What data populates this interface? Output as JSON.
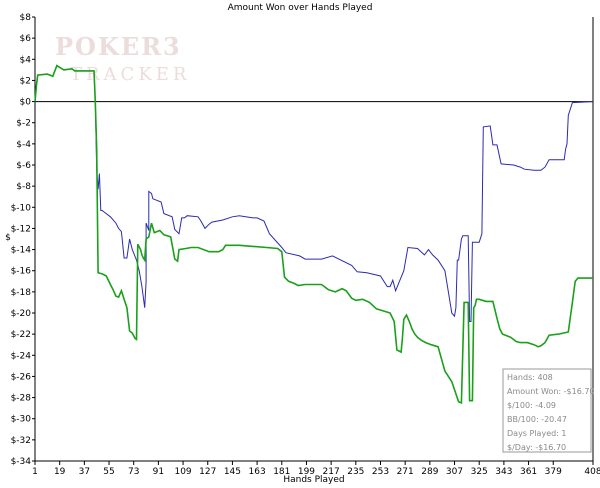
{
  "chart_data": {
    "type": "line",
    "title": "Amount Won over Hands Played",
    "xlabel": "Hands Played",
    "ylabel": "$",
    "xlim": [
      1,
      408
    ],
    "ylim": [
      -34,
      8
    ],
    "x_ticks": [
      1,
      19,
      37,
      55,
      73,
      91,
      109,
      127,
      145,
      163,
      181,
      199,
      217,
      235,
      253,
      271,
      289,
      307,
      325,
      343,
      361,
      379,
      408
    ],
    "y_ticks": [
      8,
      6,
      4,
      2,
      0,
      -2,
      -4,
      -6,
      -8,
      -10,
      -12,
      -14,
      -16,
      -18,
      -20,
      -22,
      -24,
      -26,
      -28,
      -30,
      -32,
      -34
    ],
    "y_tick_labels": [
      "$8",
      "$6",
      "$4",
      "$2",
      "$0",
      "$-2",
      "$-4",
      "$-6",
      "$-8",
      "$-10",
      "$-12",
      "$-14",
      "$-16",
      "$-18",
      "$-20",
      "$-22",
      "$-24",
      "$-26",
      "$-28",
      "$-30",
      "$-32",
      "$-34"
    ],
    "grid": false,
    "zero_line": true,
    "series": [
      {
        "color": "#2b2bb0",
        "points": [
          [
            1,
            0
          ],
          [
            2,
            1.5
          ],
          [
            3,
            2.5
          ],
          [
            10,
            2.6
          ],
          [
            14,
            2.4
          ],
          [
            17,
            3.4
          ],
          [
            22,
            3.0
          ],
          [
            28,
            3.1
          ],
          [
            30,
            2.9
          ],
          [
            40,
            2.9
          ],
          [
            44,
            2.9
          ],
          [
            45,
            -0.1
          ],
          [
            46,
            -6.5
          ],
          [
            47,
            -8.3
          ],
          [
            48,
            -6.8
          ],
          [
            49,
            -10.3
          ],
          [
            50,
            -10.3
          ],
          [
            52,
            -10.5
          ],
          [
            56,
            -10.9
          ],
          [
            60,
            -11.5
          ],
          [
            62,
            -12.0
          ],
          [
            64,
            -12.3
          ],
          [
            66,
            -14.8
          ],
          [
            68,
            -14.8
          ],
          [
            70,
            -13.0
          ],
          [
            72,
            -14.0
          ],
          [
            75,
            -15.0
          ],
          [
            77,
            -16.0
          ],
          [
            79,
            -17.5
          ],
          [
            81,
            -19.5
          ],
          [
            82,
            -17.0
          ],
          [
            82,
            -11.5
          ],
          [
            84,
            -12.2
          ],
          [
            84,
            -8.5
          ],
          [
            86,
            -8.7
          ],
          [
            87,
            -9.2
          ],
          [
            93,
            -9.5
          ],
          [
            95,
            -10.6
          ],
          [
            101,
            -10.9
          ],
          [
            103,
            -12.1
          ],
          [
            106,
            -12.5
          ],
          [
            108,
            -11.0
          ],
          [
            110,
            -11.0
          ],
          [
            112,
            -10.8
          ],
          [
            120,
            -10.9
          ],
          [
            122,
            -11.3
          ],
          [
            125,
            -12.0
          ],
          [
            128,
            -11.6
          ],
          [
            130,
            -11.4
          ],
          [
            138,
            -11.2
          ],
          [
            145,
            -10.9
          ],
          [
            150,
            -10.8
          ],
          [
            160,
            -11.0
          ],
          [
            163,
            -11.0
          ],
          [
            168,
            -11.3
          ],
          [
            172,
            -12.5
          ],
          [
            181,
            -13.8
          ],
          [
            184,
            -14.3
          ],
          [
            194,
            -14.6
          ],
          [
            198,
            -14.9
          ],
          [
            210,
            -14.9
          ],
          [
            218,
            -14.6
          ],
          [
            232,
            -15.5
          ],
          [
            236,
            -16.1
          ],
          [
            243,
            -16.2
          ],
          [
            253,
            -16.5
          ],
          [
            258,
            -17.5
          ],
          [
            260,
            -17.5
          ],
          [
            262,
            -16.9
          ],
          [
            264,
            -17.9
          ],
          [
            270,
            -16.0
          ],
          [
            273,
            -13.8
          ],
          [
            280,
            -13.9
          ],
          [
            285,
            -14.5
          ],
          [
            288,
            -14.0
          ],
          [
            291,
            -14.5
          ],
          [
            295,
            -15.0
          ],
          [
            300,
            -16.0
          ],
          [
            305,
            -20.0
          ],
          [
            307,
            -20.3
          ],
          [
            308,
            -19.5
          ],
          [
            309,
            -15.0
          ],
          [
            310,
            -15.0
          ],
          [
            312,
            -13.0
          ],
          [
            313,
            -12.7
          ],
          [
            317,
            -12.7
          ],
          [
            318,
            -20.8
          ],
          [
            319,
            -20.8
          ],
          [
            320,
            -13.3
          ],
          [
            325,
            -13.3
          ],
          [
            327,
            -12.5
          ],
          [
            328,
            -2.4
          ],
          [
            333,
            -2.3
          ],
          [
            335,
            -4.1
          ],
          [
            338,
            -4.1
          ],
          [
            341,
            -5.9
          ],
          [
            350,
            -6.0
          ],
          [
            355,
            -6.2
          ],
          [
            358,
            -6.4
          ],
          [
            365,
            -6.5
          ],
          [
            370,
            -6.5
          ],
          [
            373,
            -6.2
          ],
          [
            376,
            -5.5
          ],
          [
            387,
            -5.5
          ],
          [
            388,
            -4.5
          ],
          [
            389,
            -4.0
          ],
          [
            390,
            -1.3
          ],
          [
            393,
            -0.1
          ],
          [
            408,
            0.0
          ]
        ]
      },
      {
        "color": "#1aa01a",
        "points": [
          [
            1,
            0
          ],
          [
            2,
            1.5
          ],
          [
            3,
            2.5
          ],
          [
            10,
            2.6
          ],
          [
            14,
            2.4
          ],
          [
            17,
            3.4
          ],
          [
            22,
            3.0
          ],
          [
            28,
            3.1
          ],
          [
            30,
            2.9
          ],
          [
            40,
            2.9
          ],
          [
            44,
            2.9
          ],
          [
            45,
            0.0
          ],
          [
            46,
            -4.5
          ],
          [
            47,
            -16.2
          ],
          [
            50,
            -16.3
          ],
          [
            53,
            -16.5
          ],
          [
            56,
            -17.3
          ],
          [
            58,
            -17.8
          ],
          [
            60,
            -18.4
          ],
          [
            62,
            -18.5
          ],
          [
            64,
            -17.9
          ],
          [
            66,
            -18.7
          ],
          [
            68,
            -19.5
          ],
          [
            70,
            -21.7
          ],
          [
            72,
            -21.9
          ],
          [
            74,
            -22.4
          ],
          [
            75,
            -22.5
          ],
          [
            76,
            -13.5
          ],
          [
            78,
            -14.0
          ],
          [
            79,
            -14.5
          ],
          [
            80,
            -14.8
          ],
          [
            81,
            -15.0
          ],
          [
            82,
            -13.0
          ],
          [
            84,
            -12.8
          ],
          [
            86,
            -11.5
          ],
          [
            88,
            -12.4
          ],
          [
            92,
            -12.2
          ],
          [
            95,
            -12.6
          ],
          [
            100,
            -12.8
          ],
          [
            103,
            -14.9
          ],
          [
            105,
            -15.1
          ],
          [
            106,
            -14.0
          ],
          [
            111,
            -13.9
          ],
          [
            115,
            -13.8
          ],
          [
            120,
            -13.8
          ],
          [
            128,
            -14.2
          ],
          [
            135,
            -14.2
          ],
          [
            138,
            -14.0
          ],
          [
            140,
            -13.6
          ],
          [
            150,
            -13.6
          ],
          [
            160,
            -13.7
          ],
          [
            170,
            -13.8
          ],
          [
            178,
            -13.9
          ],
          [
            181,
            -14.2
          ],
          [
            183,
            -16.6
          ],
          [
            186,
            -17.0
          ],
          [
            190,
            -17.2
          ],
          [
            193,
            -17.4
          ],
          [
            198,
            -17.3
          ],
          [
            203,
            -17.3
          ],
          [
            210,
            -17.3
          ],
          [
            215,
            -17.8
          ],
          [
            220,
            -18.0
          ],
          [
            225,
            -17.7
          ],
          [
            228,
            -17.9
          ],
          [
            232,
            -18.6
          ],
          [
            235,
            -18.8
          ],
          [
            240,
            -18.7
          ],
          [
            245,
            -19.0
          ],
          [
            250,
            -19.6
          ],
          [
            255,
            -19.8
          ],
          [
            260,
            -20.0
          ],
          [
            263,
            -20.8
          ],
          [
            265,
            -23.5
          ],
          [
            268,
            -23.7
          ],
          [
            269,
            -22.4
          ],
          [
            270,
            -20.6
          ],
          [
            272,
            -20.2
          ],
          [
            274,
            -20.8
          ],
          [
            276,
            -21.5
          ],
          [
            278,
            -22.0
          ],
          [
            280,
            -22.3
          ],
          [
            283,
            -22.6
          ],
          [
            286,
            -22.8
          ],
          [
            290,
            -23.0
          ],
          [
            295,
            -23.2
          ],
          [
            300,
            -25.5
          ],
          [
            305,
            -26.5
          ],
          [
            310,
            -28.4
          ],
          [
            312,
            -28.5
          ],
          [
            314,
            -19.0
          ],
          [
            317,
            -19.0
          ],
          [
            318,
            -28.3
          ],
          [
            320,
            -28.3
          ],
          [
            321,
            -19.5
          ],
          [
            322,
            -19.3
          ],
          [
            323,
            -18.7
          ],
          [
            325,
            -18.7
          ],
          [
            330,
            -18.9
          ],
          [
            335,
            -18.9
          ],
          [
            338,
            -20.5
          ],
          [
            340,
            -21.5
          ],
          [
            342,
            -22.0
          ],
          [
            348,
            -22.3
          ],
          [
            352,
            -22.7
          ],
          [
            355,
            -22.8
          ],
          [
            360,
            -22.8
          ],
          [
            365,
            -23.0
          ],
          [
            368,
            -23.2
          ],
          [
            370,
            -23.1
          ],
          [
            373,
            -22.8
          ],
          [
            376,
            -22.1
          ],
          [
            383,
            -22.0
          ],
          [
            390,
            -21.8
          ],
          [
            393,
            -19.0
          ],
          [
            395,
            -17.0
          ],
          [
            397,
            -16.7
          ],
          [
            408,
            -16.7
          ]
        ]
      }
    ],
    "stats_box": {
      "lines": [
        "Hands: 408",
        "Amount Won: -$16.70",
        "$/100: -4.09",
        "BB/100: -20.47",
        "Days Played: 1",
        "$/Day: -$16.70"
      ]
    }
  },
  "watermark": {
    "line1": "POKER3",
    "line2": "TRACKER"
  },
  "colors": {
    "axis": "#000000",
    "stats_border": "#9a9a9a",
    "stats_text": "#8a8a8a",
    "watermark": "#e6d4d4"
  }
}
